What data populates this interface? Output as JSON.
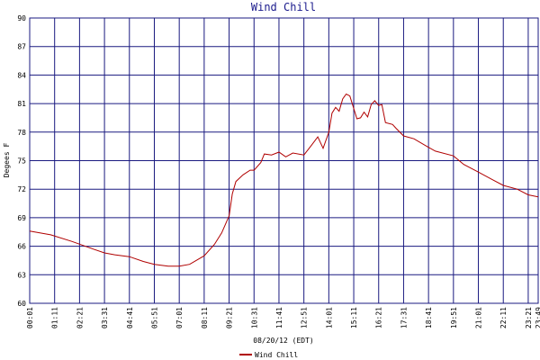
{
  "chart_data": {
    "type": "line",
    "title": "Wind Chill",
    "x_label": "08/20/12 (EDT)",
    "y_label": "Degees F",
    "x": [
      "00:01",
      "01:00",
      "02:00",
      "03:00",
      "03:31",
      "04:00",
      "04:41",
      "05:20",
      "05:51",
      "06:30",
      "07:01",
      "07:30",
      "08:11",
      "08:40",
      "09:00",
      "09:21",
      "09:30",
      "09:40",
      "10:00",
      "10:20",
      "10:31",
      "10:50",
      "11:00",
      "11:20",
      "11:41",
      "12:00",
      "12:20",
      "12:51",
      "13:10",
      "13:30",
      "13:45",
      "14:01",
      "14:10",
      "14:20",
      "14:30",
      "14:40",
      "14:50",
      "15:00",
      "15:11",
      "15:20",
      "15:30",
      "15:40",
      "15:50",
      "16:00",
      "16:10",
      "16:21",
      "16:30",
      "16:40",
      "17:00",
      "17:10",
      "17:31",
      "18:00",
      "18:41",
      "19:00",
      "19:51",
      "20:20",
      "21:01",
      "21:40",
      "22:11",
      "22:50",
      "23:21",
      "23:49"
    ],
    "series": [
      {
        "name": "Wind Chill",
        "color": "#b00000",
        "values": [
          67.6,
          67.2,
          66.5,
          65.7,
          65.3,
          65.1,
          64.9,
          64.4,
          64.1,
          63.9,
          63.9,
          64.1,
          65.0,
          66.2,
          67.4,
          69.2,
          71.5,
          72.8,
          73.5,
          74.0,
          74.0,
          74.8,
          75.7,
          75.6,
          75.9,
          75.4,
          75.8,
          75.6,
          76.5,
          77.5,
          76.3,
          78.0,
          80.0,
          80.6,
          80.2,
          81.5,
          82.0,
          81.8,
          80.5,
          79.4,
          79.5,
          80.1,
          79.6,
          80.9,
          81.3,
          80.8,
          80.9,
          79.0,
          78.8,
          78.4,
          77.6,
          77.3,
          76.4,
          76.0,
          75.5,
          74.6,
          73.8,
          73.0,
          72.4,
          72.0,
          71.4,
          71.2
        ]
      }
    ],
    "xlim": [
      "00:01",
      "23:49"
    ],
    "xticks": [
      "00:01",
      "01:11",
      "02:21",
      "03:31",
      "04:41",
      "05:51",
      "07:01",
      "08:11",
      "09:21",
      "10:31",
      "11:41",
      "12:51",
      "14:01",
      "15:11",
      "16:21",
      "17:31",
      "18:41",
      "19:51",
      "21:01",
      "22:11",
      "23:21",
      "23:49"
    ],
    "ylim": [
      60,
      90
    ],
    "yticks": [
      60,
      63,
      66,
      69,
      72,
      75,
      78,
      81,
      84,
      87,
      90
    ],
    "grid": true
  }
}
